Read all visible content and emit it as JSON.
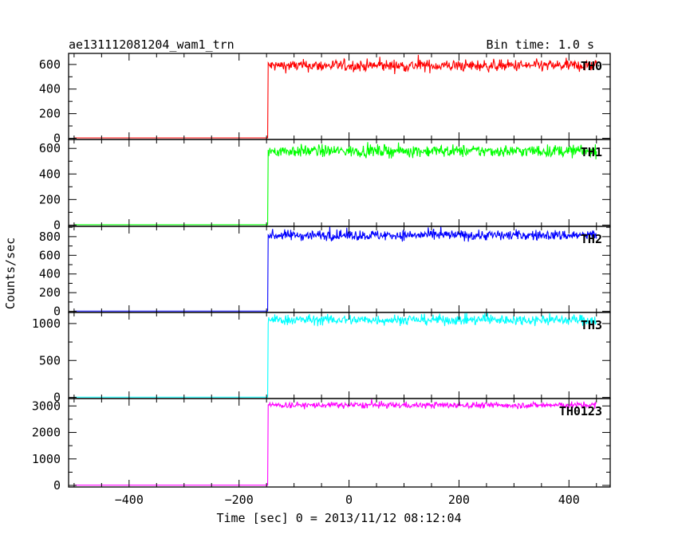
{
  "header": {
    "title": "ae131112081204_wam1_trn",
    "bin_time": "Bin time: 1.0 s"
  },
  "chart_data": {
    "type": "line",
    "title": "ae131112081204_wam1_trn",
    "subtitle": "Bin time: 1.0 s",
    "xlabel": "Time [sec] 0 = 2013/11/12 08:12:04",
    "ylabel": "Counts/sec",
    "xlim": [
      -510,
      475
    ],
    "x_ticks": [
      -400,
      -200,
      0,
      200,
      400
    ],
    "x_tick_labels": [
      "−400",
      "−200",
      "0",
      "200",
      "400"
    ],
    "x_start": -500,
    "x_end": 450,
    "onset_time": -147,
    "grid": false,
    "panels": [
      {
        "name": "TH0",
        "color": "#ff0000",
        "ylim": [
          -10,
          690
        ],
        "yticks": [
          0,
          200,
          400,
          600
        ],
        "yticklabels": [
          "0",
          "200",
          "400",
          "600"
        ],
        "pre_level": 3,
        "post_level": 590,
        "noise": 24
      },
      {
        "name": "TH1",
        "color": "#00ff00",
        "ylim": [
          -10,
          670
        ],
        "yticks": [
          0,
          200,
          400,
          600
        ],
        "yticklabels": [
          "0",
          "200",
          "400",
          "600"
        ],
        "pre_level": 3,
        "post_level": 580,
        "noise": 24
      },
      {
        "name": "TH2",
        "color": "#0000ff",
        "ylim": [
          -12,
          910
        ],
        "yticks": [
          0,
          200,
          400,
          600,
          800
        ],
        "yticklabels": [
          "0",
          "200",
          "400",
          "600",
          "800"
        ],
        "pre_level": 3,
        "post_level": 815,
        "noise": 28
      },
      {
        "name": "TH3",
        "color": "#00ffff",
        "ylim": [
          -15,
          1150
        ],
        "yticks": [
          0,
          500,
          1000
        ],
        "yticklabels": [
          "0",
          "500",
          "1000"
        ],
        "pre_level": 4,
        "post_level": 1050,
        "noise": 35
      },
      {
        "name": "TH0123",
        "color": "#ff00ff",
        "ylim": [
          -60,
          3280
        ],
        "yticks": [
          0,
          1000,
          2000,
          3000
        ],
        "yticklabels": [
          "0",
          "1000",
          "2000",
          "3000"
        ],
        "pre_level": 10,
        "post_level": 3030,
        "noise": 60
      }
    ]
  }
}
